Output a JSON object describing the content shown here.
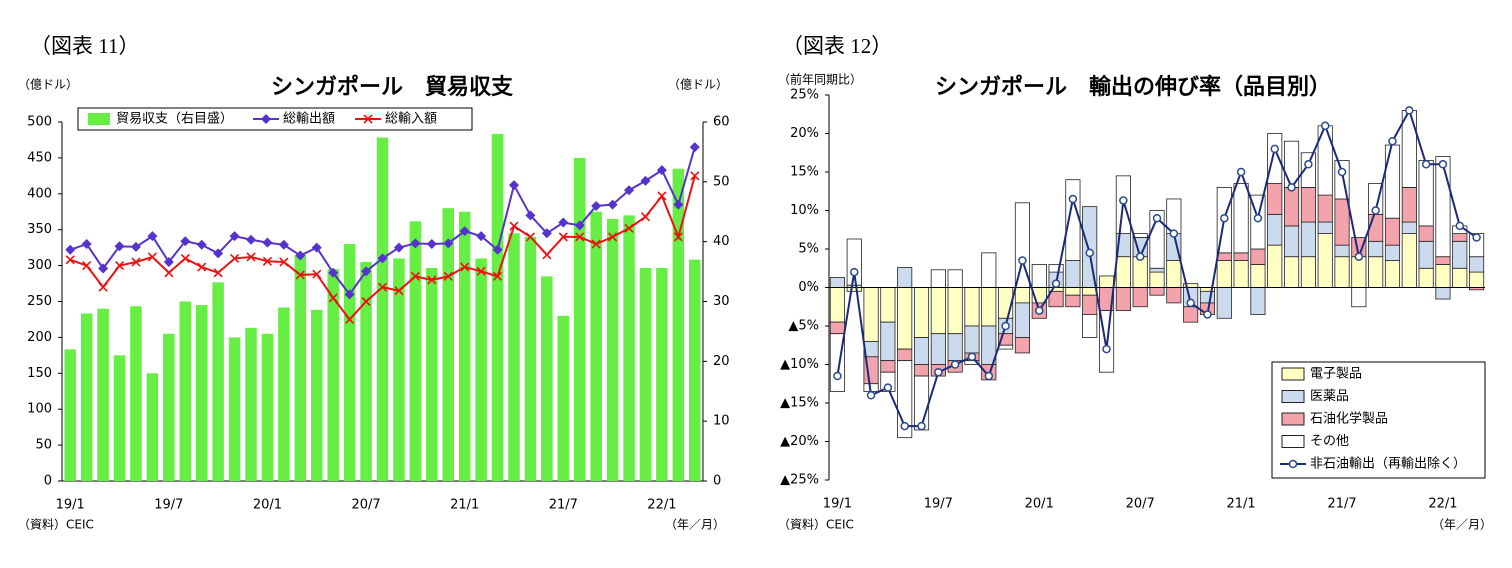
{
  "chart_data": [
    {
      "type": "combo",
      "figure_label": "（図表 11）",
      "title": "シンガポール　貿易収支",
      "y_label": "（億ドル）",
      "y2_label": "（億ドル）",
      "source": "（資料）CEIC",
      "x_label": "（年／月）",
      "legend": "top-left",
      "stacked": false,
      "categories": [
        "19/1",
        null,
        null,
        null,
        null,
        null,
        "19/7",
        null,
        null,
        null,
        null,
        null,
        "20/1",
        null,
        null,
        null,
        null,
        null,
        "20/7",
        null,
        null,
        null,
        null,
        null,
        "21/1",
        null,
        null,
        null,
        null,
        null,
        "21/7",
        null,
        null,
        null,
        null,
        null,
        "22/1",
        null,
        null
      ],
      "ylim": [
        0,
        500
      ],
      "yticks": [
        0,
        50,
        100,
        150,
        200,
        250,
        300,
        350,
        400,
        450,
        500
      ],
      "y2lim": [
        0,
        60
      ],
      "y2ticks": [
        0,
        10,
        20,
        30,
        40,
        50,
        60
      ],
      "series": [
        {
          "name": "貿易収支（右目盛）",
          "kind": "bar",
          "axis": "y2",
          "color": "#66ee44",
          "values": [
            22.0,
            28.0,
            28.8,
            21.0,
            29.2,
            18.0,
            24.6,
            30.0,
            29.4,
            33.2,
            24.0,
            25.6,
            24.6,
            29.0,
            37.8,
            28.6,
            35.4,
            39.6,
            36.6,
            57.4,
            37.2,
            43.4,
            35.6,
            45.6,
            45.0,
            37.2,
            58.0,
            41.4,
            40.8,
            34.2,
            27.6,
            54.0,
            45.0,
            43.8,
            44.4,
            35.6,
            35.6,
            52.2,
            37.0
          ]
        },
        {
          "name": "総輸出額",
          "kind": "line",
          "marker": "diamond",
          "color": "#5533cc",
          "values": [
            322,
            330,
            296,
            327,
            326,
            341,
            305,
            334,
            329,
            317,
            341,
            336,
            332,
            329,
            314,
            325,
            290,
            260,
            292,
            310,
            325,
            331,
            330,
            331,
            348,
            341,
            322,
            412,
            370,
            345,
            360,
            356,
            383,
            385,
            405,
            418,
            433,
            385,
            465
          ]
        },
        {
          "name": "総輸入額",
          "kind": "line",
          "marker": "x",
          "color": "#ee1111",
          "values": [
            308,
            300,
            270,
            300,
            305,
            312,
            290,
            310,
            298,
            290,
            310,
            312,
            306,
            305,
            287,
            288,
            255,
            225,
            250,
            270,
            265,
            285,
            280,
            285,
            298,
            292,
            285,
            355,
            340,
            315,
            340,
            340,
            330,
            340,
            352,
            368,
            397,
            340,
            425
          ]
        }
      ]
    },
    {
      "type": "combo",
      "figure_label": "（図表 12）",
      "title": "シンガポール　輸出の伸び率（品目別）",
      "y_label": "（前年同期比）",
      "source": "（資料）CEIC",
      "x_label": "（年／月）",
      "legend": "bottom-right",
      "stacked": true,
      "categories": [
        "19/1",
        null,
        null,
        null,
        null,
        null,
        "19/7",
        null,
        null,
        null,
        null,
        null,
        "20/1",
        null,
        null,
        null,
        null,
        null,
        "20/7",
        null,
        null,
        null,
        null,
        null,
        "21/1",
        null,
        null,
        null,
        null,
        null,
        "21/7",
        null,
        null,
        null,
        null,
        null,
        "22/1",
        null,
        null
      ],
      "ylim": [
        -25,
        25
      ],
      "yticks": [
        {
          "value": -25,
          "label": "▲25%"
        },
        {
          "value": -20,
          "label": "▲20%"
        },
        {
          "value": -15,
          "label": "▲15%"
        },
        {
          "value": -10,
          "label": "▲10%"
        },
        {
          "value": -5,
          "label": "▲5%"
        },
        {
          "value": 0,
          "label": "0%"
        },
        {
          "value": 5,
          "label": "5%"
        },
        {
          "value": 10,
          "label": "10%"
        },
        {
          "value": 15,
          "label": "15%"
        },
        {
          "value": 20,
          "label": "20%"
        },
        {
          "value": 25,
          "label": "25%"
        }
      ],
      "series": [
        {
          "name": "電子製品",
          "kind": "bar",
          "color": "#ffffc4",
          "values": [
            -4.5,
            -0.5,
            -7,
            -4.5,
            -8,
            -6.5,
            -6,
            -6,
            -5,
            -5,
            -4,
            -2,
            -2,
            -0.5,
            -1,
            -1,
            1.5,
            4,
            4,
            2,
            3.5,
            0.5,
            -0.5,
            3.5,
            3.5,
            3,
            5.5,
            4,
            4,
            7,
            4,
            4,
            4,
            3.5,
            7,
            2.5,
            3,
            2.5,
            2
          ]
        },
        {
          "name": "医薬品",
          "kind": "bar",
          "color": "#cbdaec",
          "values": [
            1.3,
            0.3,
            -2,
            -5,
            2.6,
            -3.5,
            -4,
            -3.5,
            -3.5,
            -5,
            -2,
            -4.5,
            0,
            2,
            3.5,
            10.5,
            0,
            3,
            2.5,
            0.5,
            3.5,
            -2.5,
            -1.5,
            -4,
            0,
            -3.5,
            4,
            4,
            4.5,
            1.5,
            1.5,
            0,
            2,
            2,
            1.5,
            3.5,
            -1.5,
            3.5,
            2
          ]
        },
        {
          "name": "石油化学製品",
          "kind": "bar",
          "color": "#f3a3ab",
          "values": [
            -1.5,
            0,
            -3.5,
            -1.5,
            -1.5,
            -1.5,
            -1.5,
            -1.5,
            -1,
            -2,
            -1.5,
            -2,
            -2,
            -2,
            -1.5,
            -2.5,
            -3,
            -3,
            -2.5,
            -1,
            -2,
            -2,
            -1.5,
            1,
            1,
            2,
            4,
            5,
            4.5,
            3.5,
            6,
            2.5,
            3.5,
            3.5,
            4.5,
            2,
            1,
            1,
            -0.3
          ]
        },
        {
          "name": "その他",
          "kind": "bar",
          "color": "#ffffff",
          "values": [
            -7.5,
            6,
            -1,
            -2.5,
            -10,
            -7,
            2.3,
            2.3,
            -0.5,
            4.5,
            -0.5,
            11,
            3,
            1,
            10.5,
            -3,
            -8,
            7.5,
            0.5,
            7.5,
            4.5,
            0,
            0,
            8.5,
            9,
            7,
            6.5,
            6,
            4.5,
            9,
            5,
            -2.5,
            4,
            9.5,
            10,
            8.5,
            13,
            1,
            3
          ]
        },
        {
          "name": "非石油輸出（再輸出除く）",
          "kind": "line",
          "marker": "circle",
          "color": "#1c2a78",
          "values": [
            -11.5,
            2,
            -14,
            -13,
            -18,
            -18,
            -11,
            -10,
            -9,
            -11.5,
            -5,
            3.5,
            -3,
            0.5,
            11.5,
            4.5,
            -8,
            11.3,
            4,
            9,
            7,
            -2,
            -3.5,
            9,
            15,
            9,
            18,
            13,
            16,
            21,
            15,
            4,
            10,
            19,
            23,
            16,
            16,
            8,
            6.5
          ]
        }
      ]
    }
  ]
}
